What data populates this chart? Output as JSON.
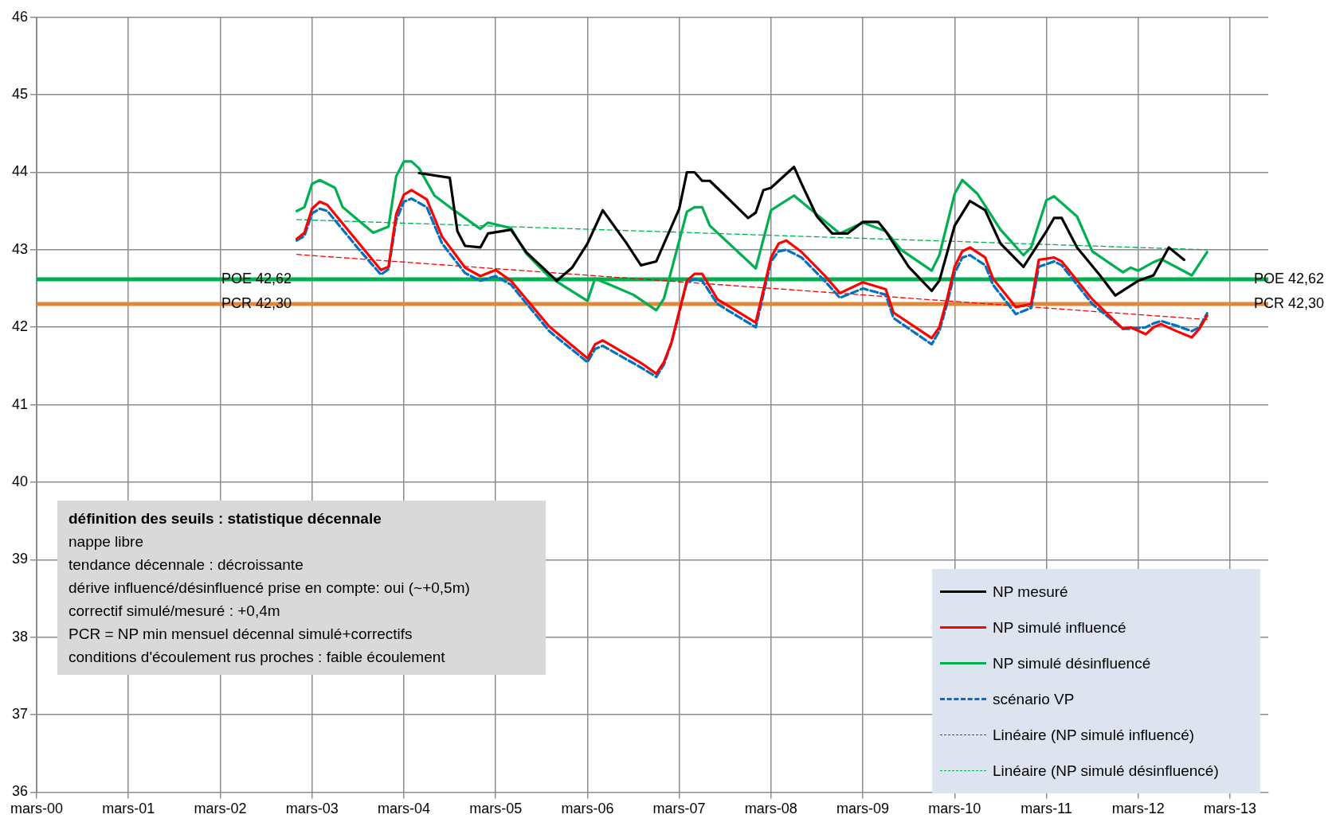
{
  "chart_data": {
    "type": "line",
    "xlim": [
      "2000-03",
      "2013-08"
    ],
    "xticks": [
      {
        "value": "2000-03",
        "label": "mars-00"
      },
      {
        "value": "2001-03",
        "label": "mars-01"
      },
      {
        "value": "2002-03",
        "label": "mars-02"
      },
      {
        "value": "2003-03",
        "label": "mars-03"
      },
      {
        "value": "2004-03",
        "label": "mars-04"
      },
      {
        "value": "2005-03",
        "label": "mars-05"
      },
      {
        "value": "2006-03",
        "label": "mars-06"
      },
      {
        "value": "2007-03",
        "label": "mars-07"
      },
      {
        "value": "2008-03",
        "label": "mars-08"
      },
      {
        "value": "2009-03",
        "label": "mars-09"
      },
      {
        "value": "2010-03",
        "label": "mars-10"
      },
      {
        "value": "2011-03",
        "label": "mars-11"
      },
      {
        "value": "2012-03",
        "label": "mars-12"
      },
      {
        "value": "2013-03",
        "label": "mars-13"
      }
    ],
    "ylim": [
      36,
      46
    ],
    "yticks": [
      36,
      37,
      38,
      39,
      40,
      41,
      42,
      43,
      44,
      45,
      46
    ],
    "grid": true,
    "legend": "bottom right",
    "marker": "none",
    "series": [
      {
        "name": "NP mesuré",
        "color": "#000000",
        "line_style": "solid",
        "x": [
          "2004-05",
          "2004-09",
          "2004-10",
          "2004-11",
          "2005-01",
          "2005-02",
          "2005-05",
          "2005-07",
          "2005-11",
          "2006-01",
          "2006-03",
          "2006-05",
          "2006-08",
          "2006-10",
          "2006-12",
          "2007-03",
          "2007-04",
          "2007-05",
          "2007-06",
          "2007-07",
          "2007-09",
          "2007-12",
          "2008-01",
          "2008-02",
          "2008-03",
          "2008-06",
          "2008-07",
          "2008-09",
          "2008-11",
          "2009-01",
          "2009-03",
          "2009-05",
          "2009-06",
          "2009-09",
          "2009-12",
          "2010-01",
          "2010-03",
          "2010-05",
          "2010-07",
          "2010-09",
          "2010-12",
          "2011-03",
          "2011-04",
          "2011-05",
          "2011-07",
          "2011-10",
          "2011-12",
          "2012-03",
          "2012-05",
          "2012-07",
          "2012-09"
        ],
        "values": [
          43.99,
          43.93,
          43.24,
          43.05,
          43.03,
          43.21,
          43.26,
          42.97,
          42.6,
          42.77,
          43.08,
          43.51,
          43.1,
          42.8,
          42.85,
          43.53,
          44.0,
          44.0,
          43.89,
          43.89,
          43.7,
          43.41,
          43.48,
          43.77,
          43.8,
          44.07,
          43.85,
          43.43,
          43.21,
          43.21,
          43.36,
          43.36,
          43.24,
          42.78,
          42.47,
          42.6,
          43.31,
          43.63,
          43.51,
          43.08,
          42.78,
          43.24,
          43.41,
          43.41,
          43.03,
          42.67,
          42.41,
          42.6,
          42.67,
          43.03,
          42.87
        ]
      },
      {
        "name": "NP simulé influencé",
        "color": "#ff0000",
        "line_style": "solid",
        "x": [
          "2003-01",
          "2003-02",
          "2003-03",
          "2003-04",
          "2003-05",
          "2003-09",
          "2003-12",
          "2004-01",
          "2004-02",
          "2004-03",
          "2004-04",
          "2004-06",
          "2004-08",
          "2004-11",
          "2005-01",
          "2005-03",
          "2005-05",
          "2005-10",
          "2006-03",
          "2006-04",
          "2006-05",
          "2006-10",
          "2006-12",
          "2007-01",
          "2007-02",
          "2007-04",
          "2007-05",
          "2007-06",
          "2007-08",
          "2008-01",
          "2008-03",
          "2008-04",
          "2008-05",
          "2008-07",
          "2008-10",
          "2008-12",
          "2009-03",
          "2009-06",
          "2009-07",
          "2009-12",
          "2010-01",
          "2010-02",
          "2010-03",
          "2010-04",
          "2010-05",
          "2010-07",
          "2010-08",
          "2010-11",
          "2011-01",
          "2011-02",
          "2011-04",
          "2011-05",
          "2011-09",
          "2012-01",
          "2012-02",
          "2012-04",
          "2012-05",
          "2012-06",
          "2012-08",
          "2012-10",
          "2012-11",
          "2012-12"
        ],
        "values": [
          43.14,
          43.22,
          43.53,
          43.62,
          43.58,
          43.1,
          42.74,
          42.78,
          43.46,
          43.71,
          43.77,
          43.65,
          43.17,
          42.77,
          42.66,
          42.74,
          42.6,
          42.01,
          41.6,
          41.78,
          41.83,
          41.54,
          41.4,
          41.55,
          41.81,
          42.6,
          42.69,
          42.69,
          42.36,
          42.06,
          42.9,
          43.08,
          43.12,
          42.97,
          42.67,
          42.44,
          42.58,
          42.49,
          42.19,
          41.86,
          42.0,
          42.36,
          42.78,
          42.98,
          43.03,
          42.9,
          42.63,
          42.26,
          42.3,
          42.87,
          42.9,
          42.85,
          42.36,
          41.98,
          42.0,
          41.91,
          42.0,
          42.04,
          41.95,
          41.87,
          41.98,
          42.15
        ]
      },
      {
        "name": "NP simulé désinfluencé",
        "color": "#00b050",
        "line_style": "solid",
        "x": [
          "2003-01",
          "2003-02",
          "2003-03",
          "2003-04",
          "2003-06",
          "2003-07",
          "2003-11",
          "2004-01",
          "2004-02",
          "2004-03",
          "2004-04",
          "2004-05",
          "2004-07",
          "2004-09",
          "2005-01",
          "2005-02",
          "2005-05",
          "2005-07",
          "2005-10",
          "2006-03",
          "2006-04",
          "2006-09",
          "2006-12",
          "2007-01",
          "2007-04",
          "2007-05",
          "2007-06",
          "2007-07",
          "2008-01",
          "2008-03",
          "2008-06",
          "2008-12",
          "2009-03",
          "2009-06",
          "2009-08",
          "2009-12",
          "2010-01",
          "2010-03",
          "2010-04",
          "2010-06",
          "2010-09",
          "2010-12",
          "2011-01",
          "2011-03",
          "2011-04",
          "2011-07",
          "2011-09",
          "2012-01",
          "2012-02",
          "2012-03",
          "2012-05",
          "2012-06",
          "2012-10",
          "2012-12"
        ],
        "values": [
          43.5,
          43.55,
          43.85,
          43.9,
          43.8,
          43.55,
          43.22,
          43.3,
          43.95,
          44.14,
          44.14,
          44.05,
          43.7,
          43.55,
          43.27,
          43.35,
          43.28,
          42.95,
          42.65,
          42.34,
          42.63,
          42.42,
          42.22,
          42.37,
          43.49,
          43.55,
          43.55,
          43.31,
          42.76,
          43.51,
          43.7,
          43.21,
          43.35,
          43.24,
          43.0,
          42.73,
          42.93,
          43.72,
          43.9,
          43.72,
          43.26,
          42.93,
          43.03,
          43.64,
          43.69,
          43.43,
          42.98,
          42.71,
          42.77,
          42.73,
          42.84,
          42.88,
          42.67,
          42.97
        ]
      },
      {
        "name": "scénario VP",
        "color": "#0070c0",
        "line_style": "dashed",
        "x": [
          "2003-01",
          "2003-02",
          "2003-03",
          "2003-04",
          "2003-05",
          "2003-09",
          "2003-12",
          "2004-01",
          "2004-02",
          "2004-03",
          "2004-04",
          "2004-06",
          "2004-08",
          "2004-11",
          "2005-01",
          "2005-03",
          "2005-05",
          "2005-10",
          "2006-03",
          "2006-04",
          "2006-05",
          "2006-10",
          "2006-12",
          "2007-01",
          "2007-02",
          "2007-04",
          "2007-05",
          "2007-06",
          "2007-08",
          "2008-01",
          "2008-03",
          "2008-04",
          "2008-05",
          "2008-07",
          "2008-10",
          "2008-12",
          "2009-03",
          "2009-06",
          "2009-07",
          "2009-12",
          "2010-01",
          "2010-02",
          "2010-03",
          "2010-04",
          "2010-05",
          "2010-07",
          "2010-08",
          "2010-11",
          "2011-01",
          "2011-02",
          "2011-04",
          "2011-05",
          "2011-09",
          "2012-01",
          "2012-02",
          "2012-04",
          "2012-05",
          "2012-06",
          "2012-08",
          "2012-10",
          "2012-11",
          "2012-12"
        ],
        "values": [
          43.12,
          43.18,
          43.47,
          43.53,
          43.5,
          43.02,
          42.68,
          42.75,
          43.38,
          43.62,
          43.66,
          43.55,
          43.08,
          42.7,
          42.6,
          42.66,
          42.55,
          41.95,
          41.55,
          41.72,
          41.76,
          41.48,
          41.36,
          41.52,
          41.8,
          42.58,
          42.62,
          42.6,
          42.3,
          42.0,
          42.85,
          42.98,
          43.0,
          42.9,
          42.6,
          42.38,
          42.5,
          42.42,
          42.12,
          41.78,
          41.95,
          42.3,
          42.7,
          42.9,
          42.93,
          42.8,
          42.55,
          42.17,
          42.25,
          42.78,
          42.85,
          42.8,
          42.3,
          41.98,
          41.98,
          42.0,
          42.05,
          42.08,
          42.02,
          41.95,
          42.0,
          42.18
        ]
      },
      {
        "name": "Linéaire (NP simulé influencé)",
        "color": "#ff0000",
        "line_style": "dashed",
        "x": [
          "2003-01",
          "2012-12"
        ],
        "values": [
          42.94,
          42.1
        ]
      },
      {
        "name": "Linéaire (NP simulé désinfluencé)",
        "color": "#00b050",
        "line_style": "dashed",
        "x": [
          "2003-01",
          "2012-12"
        ],
        "values": [
          43.39,
          43.0
        ]
      }
    ],
    "ref_lines": [
      {
        "axis": "y",
        "value": 42.62,
        "label": "POE 42,62",
        "color": "#00b050"
      },
      {
        "axis": "y",
        "value": 42.3,
        "label": "PCR 42,30",
        "color": "#e0873a"
      }
    ],
    "annotations": [
      "définition des seuils : statistique décennale",
      "nappe libre",
      "tendance décennale : décroissante",
      "dérive influencé/désinfluencé  prise en compte: oui (~+0,5m)",
      "correctif simulé/mesuré : +0,4m",
      "PCR = NP min mensuel décennal simulé+correctifs",
      "conditions d'écoulement rus proches : faible écoulement"
    ]
  }
}
